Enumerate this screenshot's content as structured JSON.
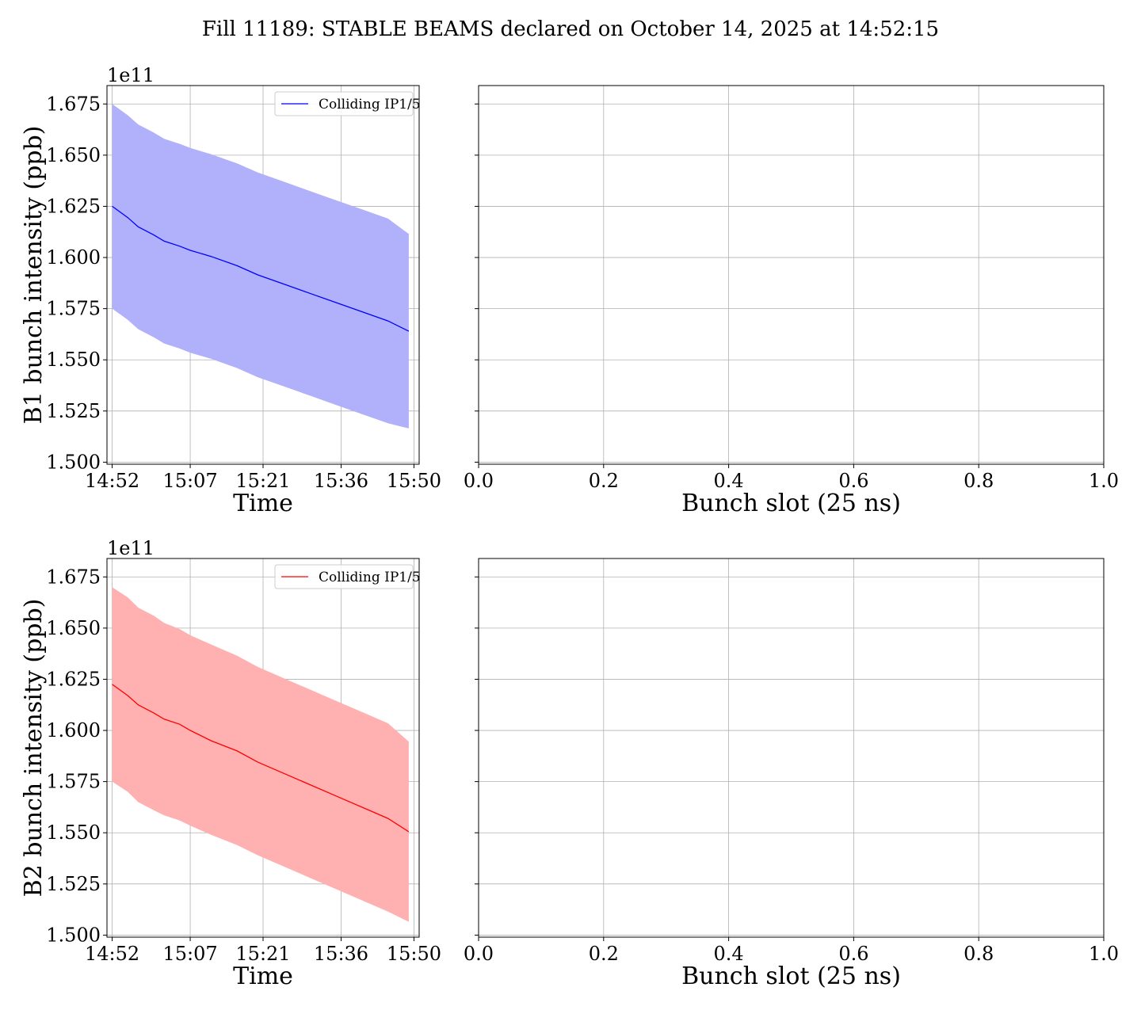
{
  "figure": {
    "title": "Fill 11189: STABLE BEAMS declared on October 14, 2025 at 14:52:15"
  },
  "chart_data": [
    {
      "type": "line",
      "panel": "B1-time",
      "title": "",
      "xlabel": "Time",
      "ylabel": "B1 bunch intensity (ppb)",
      "y_offset_text": "1e11",
      "y_scale_multiplier": 100000000000.0,
      "xlim": [
        "14:51",
        "15:51"
      ],
      "ylim": [
        1.499,
        1.684
      ],
      "x_tick_labels": [
        "14:52",
        "15:07",
        "15:21",
        "15:36",
        "15:50"
      ],
      "y_ticks": [
        1.5,
        1.525,
        1.55,
        1.575,
        1.6,
        1.625,
        1.65,
        1.675
      ],
      "y_tick_labels": [
        "1.500",
        "1.525",
        "1.550",
        "1.575",
        "1.600",
        "1.625",
        "1.650",
        "1.675"
      ],
      "grid": true,
      "legend_position": "upper right",
      "series": [
        {
          "name": "Colliding IP1/5",
          "color": "#0000ff",
          "band_color": "#b0b0fb",
          "x": [
            "14:52",
            "14:55",
            "14:57",
            "15:00",
            "15:02",
            "15:05",
            "15:07",
            "15:11",
            "15:16",
            "15:20",
            "15:25",
            "15:30",
            "15:35",
            "15:40",
            "15:45",
            "15:49"
          ],
          "y": [
            1.625,
            1.6195,
            1.615,
            1.611,
            1.608,
            1.6055,
            1.6035,
            1.6005,
            1.596,
            1.5915,
            1.587,
            1.5825,
            1.578,
            1.5735,
            1.569,
            1.564
          ],
          "y_upper": [
            1.675,
            1.6695,
            1.665,
            1.661,
            1.658,
            1.6555,
            1.6535,
            1.6505,
            1.646,
            1.6415,
            1.637,
            1.6325,
            1.628,
            1.6235,
            1.619,
            1.6115
          ],
          "y_lower": [
            1.575,
            1.5695,
            1.565,
            1.561,
            1.558,
            1.5555,
            1.5535,
            1.5505,
            1.546,
            1.5415,
            1.537,
            1.5325,
            1.528,
            1.5235,
            1.519,
            1.5165
          ]
        }
      ]
    },
    {
      "type": "line",
      "panel": "B1-slot",
      "title": "",
      "xlabel": "Bunch slot (25 ns)",
      "ylabel": "",
      "xlim": [
        0.0,
        1.0
      ],
      "ylim": [
        1.499,
        1.684
      ],
      "x_ticks": [
        0.0,
        0.2,
        0.4,
        0.6,
        0.8,
        1.0
      ],
      "x_tick_labels": [
        "0.0",
        "0.2",
        "0.4",
        "0.6",
        "0.8",
        "1.0"
      ],
      "y_ticks": [
        1.5,
        1.525,
        1.55,
        1.575,
        1.6,
        1.625,
        1.65,
        1.675
      ],
      "grid": true,
      "series": []
    },
    {
      "type": "line",
      "panel": "B2-time",
      "title": "",
      "xlabel": "Time",
      "ylabel": "B2 bunch intensity (ppb)",
      "y_offset_text": "1e11",
      "y_scale_multiplier": 100000000000.0,
      "xlim": [
        "14:51",
        "15:51"
      ],
      "ylim": [
        1.499,
        1.684
      ],
      "x_tick_labels": [
        "14:52",
        "15:07",
        "15:21",
        "15:36",
        "15:50"
      ],
      "y_ticks": [
        1.5,
        1.525,
        1.55,
        1.575,
        1.6,
        1.625,
        1.65,
        1.675
      ],
      "y_tick_labels": [
        "1.500",
        "1.525",
        "1.550",
        "1.575",
        "1.600",
        "1.625",
        "1.650",
        "1.675"
      ],
      "grid": true,
      "legend_position": "upper right",
      "series": [
        {
          "name": "Colliding IP1/5",
          "color": "#ff0000",
          "band_color": "#ffb0b0",
          "x": [
            "14:52",
            "14:55",
            "14:57",
            "15:00",
            "15:02",
            "15:05",
            "15:07",
            "15:11",
            "15:16",
            "15:20",
            "15:25",
            "15:30",
            "15:35",
            "15:40",
            "15:45",
            "15:49"
          ],
          "y": [
            1.6225,
            1.617,
            1.6125,
            1.6085,
            1.6055,
            1.603,
            1.6,
            1.595,
            1.59,
            1.5845,
            1.579,
            1.5735,
            1.568,
            1.5625,
            1.557,
            1.5505
          ],
          "y_upper": [
            1.67,
            1.665,
            1.66,
            1.656,
            1.6525,
            1.6495,
            1.6465,
            1.642,
            1.6365,
            1.631,
            1.6255,
            1.62,
            1.6145,
            1.609,
            1.6035,
            1.5945
          ],
          "y_lower": [
            1.575,
            1.57,
            1.565,
            1.561,
            1.5585,
            1.556,
            1.5535,
            1.549,
            1.544,
            1.539,
            1.5335,
            1.528,
            1.5225,
            1.517,
            1.5115,
            1.5065
          ]
        }
      ]
    },
    {
      "type": "line",
      "panel": "B2-slot",
      "title": "",
      "xlabel": "Bunch slot (25 ns)",
      "ylabel": "",
      "xlim": [
        0.0,
        1.0
      ],
      "ylim": [
        1.499,
        1.684
      ],
      "x_ticks": [
        0.0,
        0.2,
        0.4,
        0.6,
        0.8,
        1.0
      ],
      "x_tick_labels": [
        "0.0",
        "0.2",
        "0.4",
        "0.6",
        "0.8",
        "1.0"
      ],
      "y_ticks": [
        1.5,
        1.525,
        1.55,
        1.575,
        1.6,
        1.625,
        1.65,
        1.675
      ],
      "grid": true,
      "series": []
    }
  ]
}
